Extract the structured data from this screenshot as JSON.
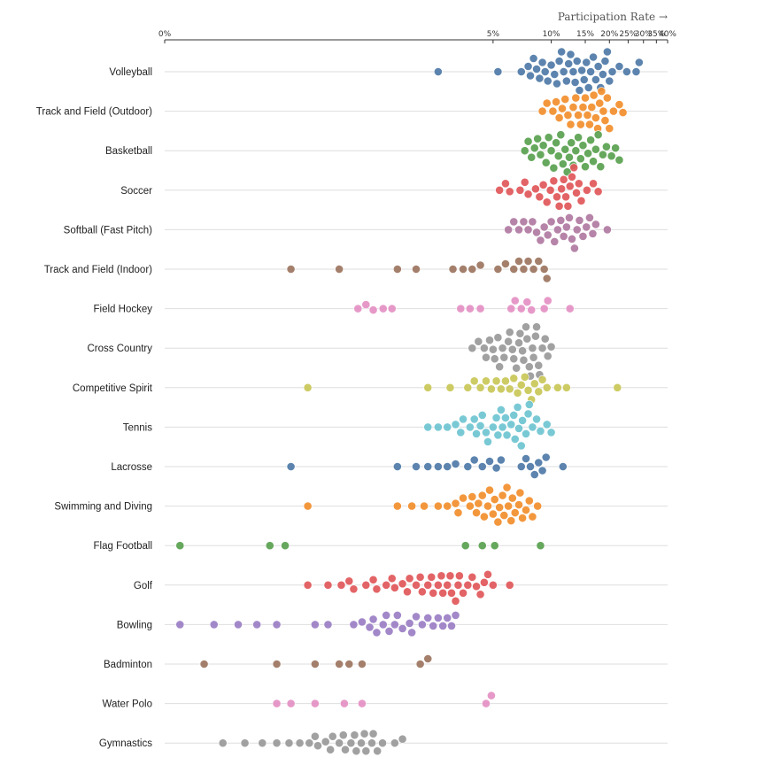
{
  "chart_data": {
    "type": "beeswarm",
    "title": "",
    "xlabel": "Participation Rate →",
    "x_scale": "log",
    "xlim": [
      0.1,
      40
    ],
    "ticks": [
      {
        "value": 0.1,
        "label": "0%"
      },
      {
        "value": 5,
        "label": "5%"
      },
      {
        "value": 10,
        "label": "10%"
      },
      {
        "value": 15,
        "label": "15%"
      },
      {
        "value": 20,
        "label": "20%"
      },
      {
        "value": 25,
        "label": "25%"
      },
      {
        "value": 30,
        "label": "30%"
      },
      {
        "value": 35,
        "label": "35%"
      },
      {
        "value": 40,
        "label": "40%"
      }
    ],
    "categories": [
      {
        "name": "Volleyball",
        "color": "#4e79a7",
        "values": [
          2.6,
          5.3,
          7.0,
          7.6,
          7.8,
          8.1,
          8.4,
          8.7,
          9.0,
          9.3,
          9.6,
          10.0,
          10.4,
          10.7,
          11.0,
          11.3,
          11.6,
          12.0,
          12.3,
          12.6,
          13.0,
          13.3,
          13.6,
          14.0,
          14.4,
          14.8,
          15.2,
          15.6,
          16.0,
          16.5,
          17.0,
          17.5,
          18.0,
          18.5,
          19.0,
          19.5,
          20.0,
          20.7,
          22.5,
          24.6,
          27.5,
          28.5
        ]
      },
      {
        "name": "Track and Field (Outdoor)",
        "color": "#f28e2c",
        "values": [
          9.0,
          9.5,
          10.2,
          10.6,
          11.0,
          11.4,
          11.8,
          12.2,
          12.6,
          13.0,
          13.4,
          13.8,
          14.2,
          14.6,
          15.0,
          15.4,
          15.8,
          16.2,
          16.6,
          17.0,
          17.4,
          17.8,
          18.2,
          18.6,
          19.0,
          19.5,
          20.0,
          21.0,
          22.5,
          23.5
        ]
      },
      {
        "name": "Basketball",
        "color": "#59a14f",
        "values": [
          7.3,
          7.6,
          7.9,
          8.2,
          8.5,
          8.8,
          9.1,
          9.4,
          9.7,
          10.0,
          10.3,
          10.6,
          10.9,
          11.2,
          11.5,
          11.8,
          12.1,
          12.4,
          12.7,
          13.0,
          13.4,
          13.8,
          14.2,
          14.6,
          15.0,
          15.5,
          16.0,
          16.5,
          17.0,
          17.5,
          18.0,
          18.5,
          19.3,
          20.5,
          21.5,
          22.5
        ]
      },
      {
        "name": "Soccer",
        "color": "#e15759",
        "values": [
          5.4,
          5.8,
          6.1,
          6.9,
          7.3,
          7.6,
          8.3,
          8.7,
          9.1,
          9.5,
          9.9,
          10.3,
          10.7,
          11.0,
          11.3,
          11.6,
          11.9,
          12.2,
          12.5,
          12.8,
          13.1,
          13.5,
          13.9,
          14.3,
          15.3,
          16.5,
          17.5
        ]
      },
      {
        "name": "Softball (Fast Pitch)",
        "color": "#b07aa1",
        "values": [
          6.0,
          6.4,
          6.8,
          7.2,
          7.6,
          8.0,
          8.4,
          8.8,
          9.2,
          9.6,
          10.0,
          10.4,
          10.8,
          11.2,
          11.6,
          12.0,
          12.4,
          12.8,
          13.2,
          13.6,
          14.0,
          14.6,
          15.2,
          15.8,
          16.4,
          17.0,
          19.5
        ]
      },
      {
        "name": "Track and Field (Indoor)",
        "color": "#9c755f",
        "values": [
          0.45,
          0.8,
          1.6,
          2.0,
          3.1,
          3.5,
          3.9,
          4.3,
          5.3,
          5.8,
          6.4,
          6.8,
          7.2,
          7.6,
          8.1,
          8.6,
          9.2,
          9.5
        ]
      },
      {
        "name": "Field Hockey",
        "color": "#e490c3",
        "values": [
          1.0,
          1.1,
          1.2,
          1.35,
          1.5,
          3.4,
          3.8,
          4.3,
          6.2,
          6.5,
          7.0,
          7.5,
          7.9,
          9.2,
          9.6,
          12.5
        ]
      },
      {
        "name": "Cross Country",
        "color": "#999999",
        "values": [
          3.9,
          4.2,
          4.5,
          4.8,
          5.1,
          5.4,
          5.7,
          6.0,
          6.3,
          6.6,
          6.9,
          7.2,
          7.5,
          7.8,
          8.1,
          8.4,
          8.7,
          9.0,
          9.3,
          9.6,
          10.0,
          4.6,
          5.3,
          6.1,
          6.8,
          7.4,
          8.0,
          8.6,
          5.0,
          5.6,
          6.4,
          7.1,
          7.7,
          8.3
        ]
      },
      {
        "name": "Competitive Spirit",
        "color": "#c9c757",
        "values": [
          0.55,
          2.3,
          3.0,
          3.7,
          4.0,
          4.3,
          4.6,
          4.9,
          5.2,
          5.5,
          5.8,
          6.1,
          6.4,
          6.7,
          7.0,
          7.3,
          7.6,
          7.9,
          8.2,
          8.6,
          9.0,
          9.5,
          10.8,
          12.0,
          22.0
        ]
      },
      {
        "name": "Tennis",
        "color": "#6ec4d1",
        "values": [
          2.3,
          2.6,
          2.9,
          3.2,
          3.5,
          3.8,
          4.1,
          4.4,
          4.7,
          5.0,
          5.3,
          5.6,
          5.9,
          6.2,
          6.5,
          6.8,
          7.1,
          7.4,
          7.7,
          8.0,
          8.4,
          8.8,
          9.5,
          10.0,
          3.4,
          4.0,
          4.6,
          5.2,
          5.8,
          6.4,
          7.0,
          7.6,
          4.3,
          5.5,
          6.7
        ]
      },
      {
        "name": "Lacrosse",
        "color": "#4e79a7",
        "values": [
          0.45,
          1.6,
          2.0,
          2.3,
          2.6,
          2.9,
          3.2,
          3.7,
          4.0,
          4.4,
          4.8,
          5.2,
          5.5,
          7.0,
          7.4,
          7.8,
          8.2,
          8.6,
          9.0,
          9.4,
          11.5
        ]
      },
      {
        "name": "Swimming and Diving",
        "color": "#f28e2c",
        "values": [
          0.55,
          1.6,
          1.9,
          2.2,
          2.6,
          2.9,
          3.2,
          3.5,
          3.8,
          4.1,
          4.4,
          4.7,
          5.0,
          5.3,
          5.6,
          5.9,
          6.2,
          6.5,
          6.8,
          7.1,
          7.4,
          7.7,
          8.0,
          8.5,
          3.3,
          3.9,
          4.5,
          5.1,
          5.7,
          6.3,
          6.9,
          4.2,
          4.8,
          5.4,
          6.0
        ]
      },
      {
        "name": "Flag Football",
        "color": "#59a14f",
        "values": [
          0.12,
          0.35,
          0.42,
          3.6,
          4.4,
          5.1,
          8.8
        ]
      },
      {
        "name": "Golf",
        "color": "#e15759",
        "values": [
          0.55,
          0.7,
          0.82,
          0.95,
          1.1,
          1.25,
          1.4,
          1.55,
          1.7,
          1.85,
          2.0,
          2.15,
          2.3,
          2.45,
          2.6,
          2.75,
          2.9,
          3.05,
          3.2,
          3.35,
          3.5,
          3.7,
          3.9,
          4.1,
          4.3,
          4.5,
          4.7,
          5.0,
          6.1,
          0.9,
          1.2,
          1.5,
          1.8,
          2.1,
          2.4,
          2.7,
          3.0,
          3.3
        ]
      },
      {
        "name": "Bowling",
        "color": "#9a7ec4",
        "values": [
          0.12,
          0.18,
          0.24,
          0.3,
          0.38,
          0.6,
          0.7,
          0.95,
          1.05,
          1.15,
          1.25,
          1.35,
          1.45,
          1.55,
          1.7,
          1.85,
          2.0,
          2.15,
          2.3,
          2.45,
          2.6,
          2.75,
          2.9,
          3.05,
          3.2,
          1.2,
          1.4,
          1.6,
          1.9
        ]
      },
      {
        "name": "Badminton",
        "color": "#9c755f",
        "values": [
          0.16,
          0.38,
          0.6,
          0.8,
          0.9,
          1.05,
          2.1,
          2.3
        ]
      },
      {
        "name": "Water Polo",
        "color": "#e490c3",
        "values": [
          0.38,
          0.45,
          0.6,
          0.85,
          1.05,
          4.6,
          4.9
        ]
      },
      {
        "name": "Gymnastics",
        "color": "#999999",
        "values": [
          0.2,
          0.26,
          0.32,
          0.38,
          0.44,
          0.5,
          0.56,
          0.62,
          0.68,
          0.74,
          0.8,
          0.86,
          0.92,
          0.98,
          1.04,
          1.1,
          1.18,
          1.26,
          1.34,
          1.55,
          1.7,
          0.6,
          0.72,
          0.84,
          0.96,
          1.08,
          1.2
        ]
      }
    ]
  }
}
